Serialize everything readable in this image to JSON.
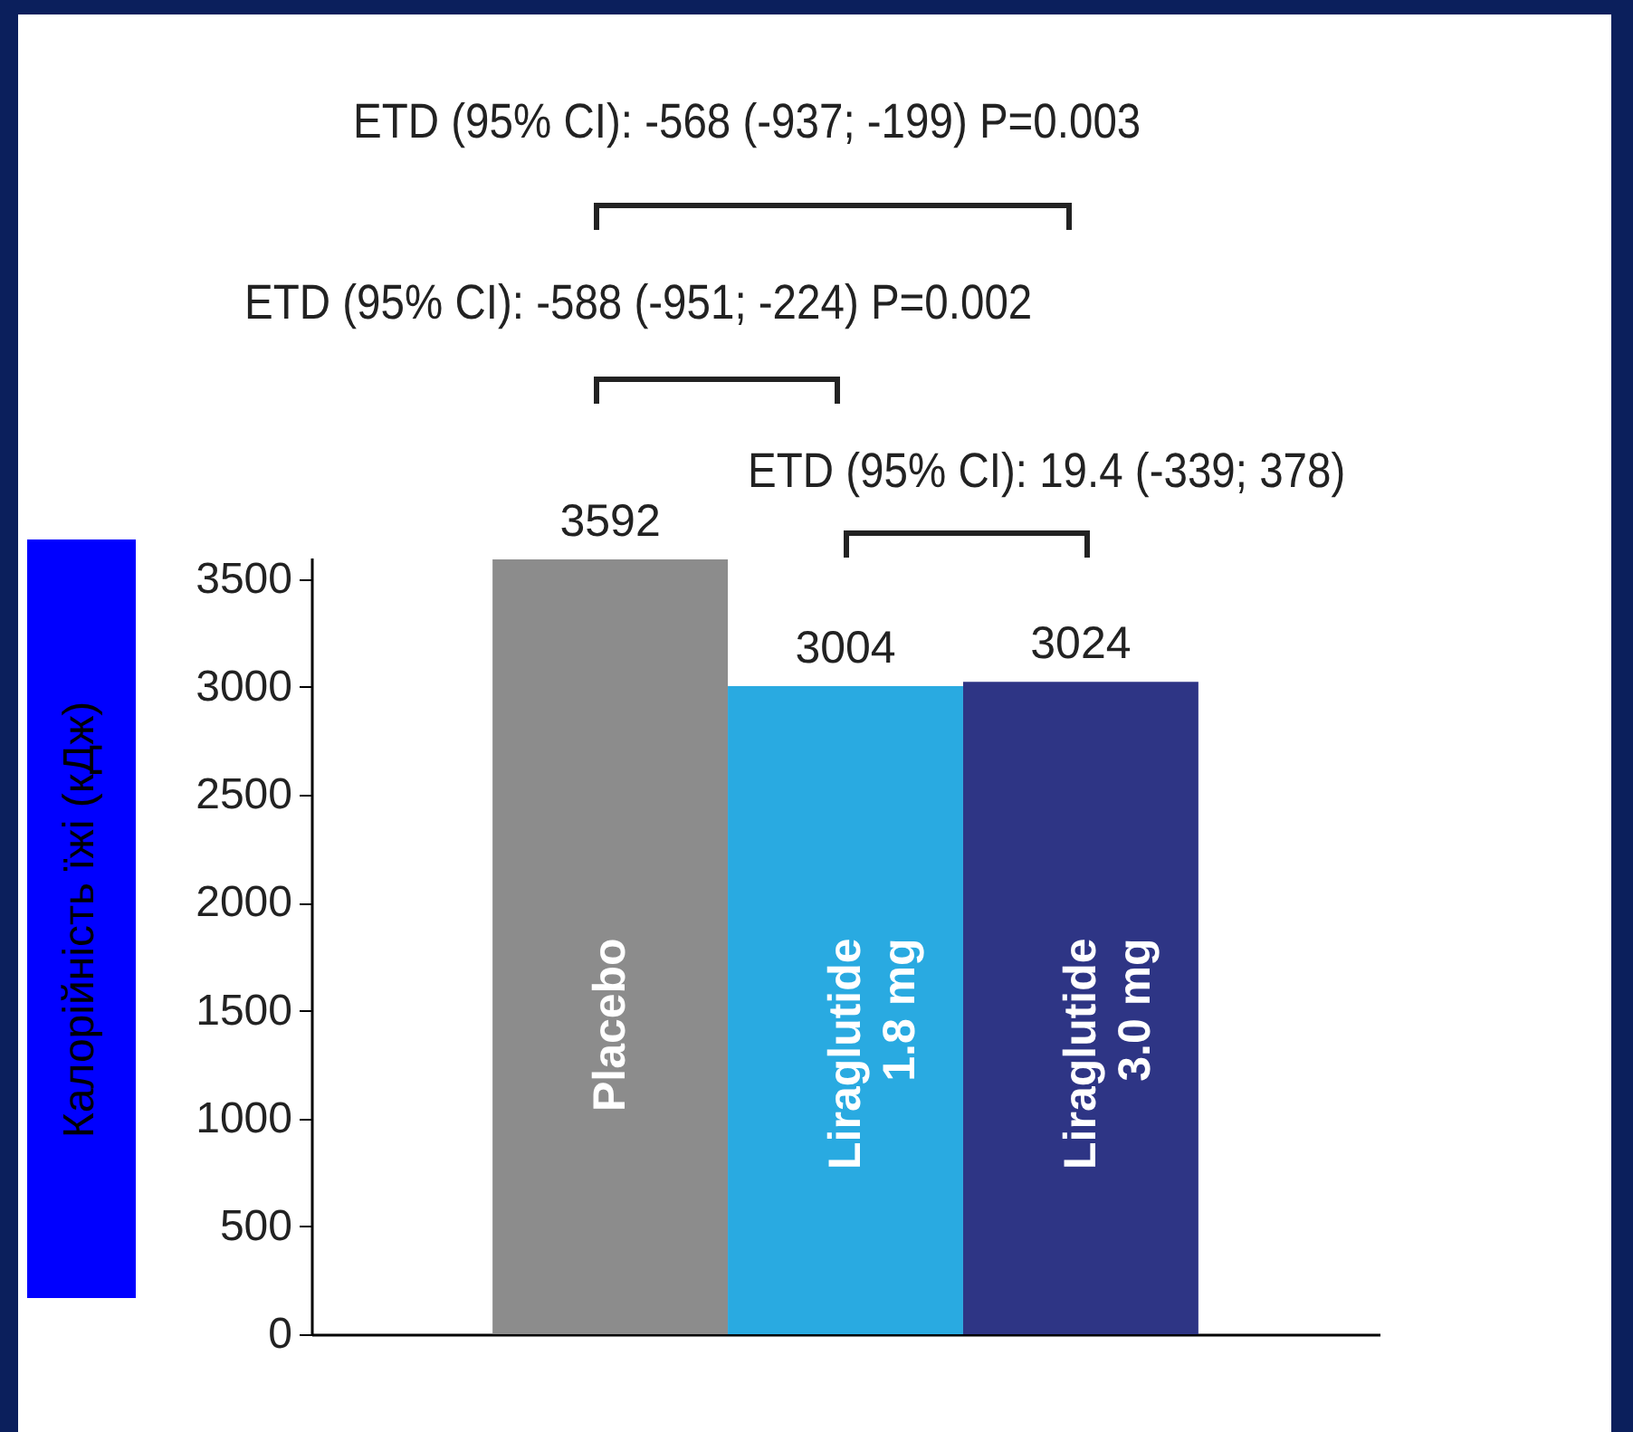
{
  "chart_data": {
    "type": "bar",
    "ylabel": "Калорійність їжі (кДж)",
    "categories": [
      "Placebo",
      "Liraglutide 1.8 mg",
      "Liraglutide 3.0 mg"
    ],
    "values": [
      3592,
      3004,
      3024
    ],
    "colors": [
      "#8c8c8c",
      "#29aae1",
      "#2e3585"
    ],
    "ylim": [
      0,
      3600
    ],
    "yticks": [
      0,
      500,
      1000,
      1500,
      2000,
      2500,
      3000,
      3500
    ],
    "data_labels": true,
    "grid": false,
    "annotations": [
      "ETD (95% CI): -568 (-937; -199)  P=0.003",
      "ETD (95% CI): -588 (-951; -224)  P=0.002",
      "ETD (95% CI): 19.4 (-339; 378)"
    ]
  }
}
